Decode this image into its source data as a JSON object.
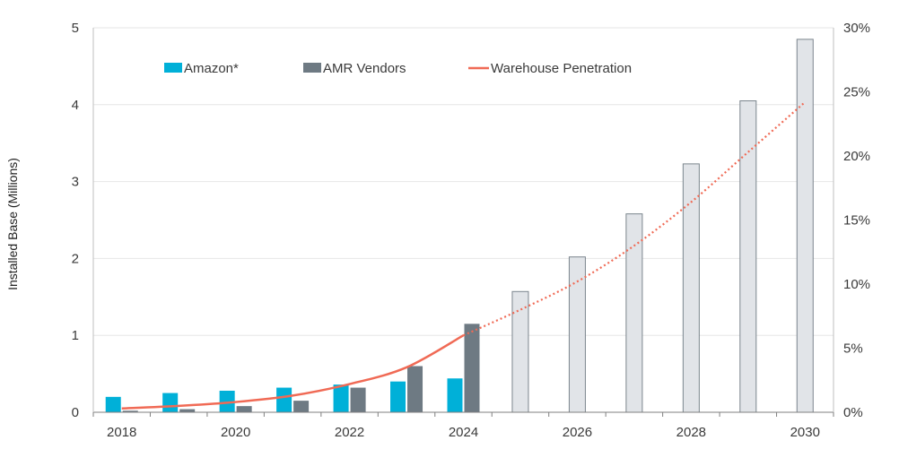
{
  "chart_data": {
    "type": "bar",
    "categories": [
      "2018",
      "2019",
      "2020",
      "2021",
      "2022",
      "2023",
      "2024",
      "2025",
      "2026",
      "2027",
      "2028",
      "2029",
      "2030"
    ],
    "x_tick_labels": [
      "2018",
      "2020",
      "2022",
      "2024",
      "2026",
      "2028",
      "2030"
    ],
    "ylabel": "Installed Base (Millions)",
    "ylim": [
      0,
      5
    ],
    "y_ticks": [
      "0",
      "1",
      "2",
      "3",
      "4",
      "5"
    ],
    "y2lim": [
      0,
      30
    ],
    "y2_ticks": [
      "0%",
      "5%",
      "10%",
      "15%",
      "20%",
      "25%",
      "30%"
    ],
    "grid": true,
    "legend_position": "top",
    "series": [
      {
        "name": "Amazon*",
        "type": "bar",
        "color": "#00b0d8",
        "values": [
          0.2,
          0.25,
          0.28,
          0.32,
          0.36,
          0.4,
          0.44,
          null,
          null,
          null,
          null,
          null,
          null
        ]
      },
      {
        "name": "AMR Vendors",
        "type": "bar",
        "color": "#6e7a83",
        "values": [
          0.02,
          0.04,
          0.08,
          0.15,
          0.32,
          0.6,
          1.15,
          null,
          null,
          null,
          null,
          null,
          null
        ]
      },
      {
        "name": "",
        "type": "bar",
        "color": "#e1e4e8",
        "stroke": "#7b858d",
        "values": [
          null,
          null,
          null,
          null,
          null,
          null,
          null,
          1.57,
          2.02,
          2.58,
          3.23,
          4.05,
          4.85
        ]
      },
      {
        "name": "Warehouse Penetration",
        "type": "line",
        "axis": "right",
        "color": "#f06a55",
        "values": [
          0.3,
          0.5,
          0.8,
          1.3,
          2.2,
          3.5,
          6.0,
          8.0,
          10.2,
          13.0,
          16.4,
          20.3,
          24.2
        ],
        "projected_from_index": 6
      }
    ]
  }
}
